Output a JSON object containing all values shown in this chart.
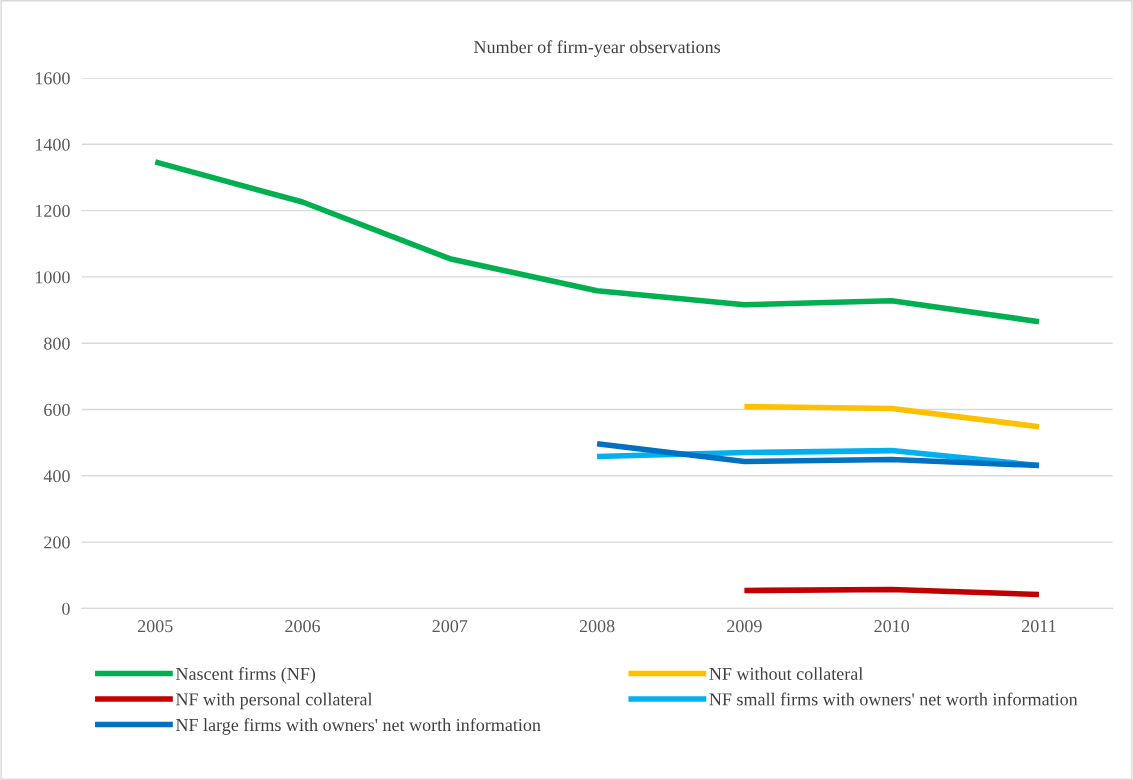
{
  "chart_data": {
    "type": "line",
    "title": "Number of firm-year observations",
    "categories": [
      "2005",
      "2006",
      "2007",
      "2008",
      "2009",
      "2010",
      "2011"
    ],
    "series": [
      {
        "name": "Nascent firms (NF)",
        "color": "#00b050",
        "values": [
          1347,
          1226,
          1055,
          958,
          916,
          928,
          865
        ]
      },
      {
        "name": "NF without collateral",
        "color": "#ffc000",
        "values": [
          null,
          null,
          null,
          null,
          609,
          603,
          548
        ]
      },
      {
        "name": "NF with personal collateral",
        "color": "#c00000",
        "values": [
          null,
          null,
          null,
          null,
          54,
          57,
          42
        ]
      },
      {
        "name": "NF small firms with owners' net worth information",
        "color": "#00b0f0",
        "values": [
          null,
          null,
          null,
          458,
          470,
          476,
          431
        ]
      },
      {
        "name": "NF large firms with owners' net worth information",
        "color": "#0070c0",
        "values": [
          null,
          null,
          null,
          497,
          443,
          449,
          431
        ]
      }
    ],
    "ylim": [
      0,
      1600
    ],
    "yticks": [
      0,
      200,
      400,
      600,
      800,
      1000,
      1200,
      1400,
      1600
    ],
    "grid": "y",
    "legend": "bottom",
    "marker": "none",
    "line_style": "solid"
  }
}
